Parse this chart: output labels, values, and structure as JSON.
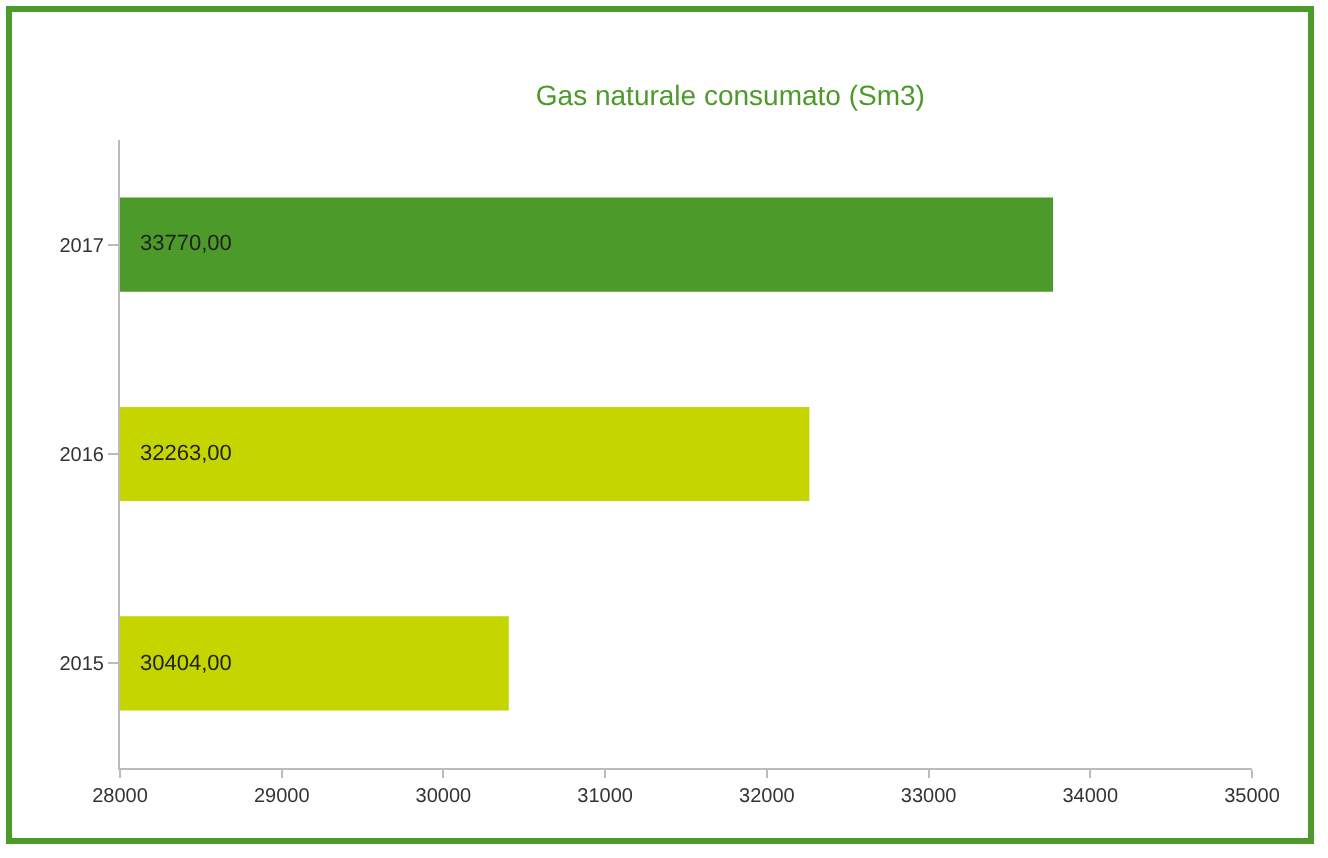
{
  "chart_data": {
    "type": "bar",
    "orientation": "horizontal",
    "title": "Gas naturale consumato (Sm3)",
    "categories": [
      "2017",
      "2016",
      "2015"
    ],
    "values": [
      33770,
      32263,
      30404
    ],
    "value_labels": [
      "33770,00",
      "32263,00",
      "30404,00"
    ],
    "colors": [
      "#4c9a2a",
      "#c5d500",
      "#c5d500"
    ],
    "xlim": [
      28000,
      35000
    ],
    "xticks": [
      28000,
      29000,
      30000,
      31000,
      32000,
      33000,
      34000,
      35000
    ],
    "grid": false
  }
}
